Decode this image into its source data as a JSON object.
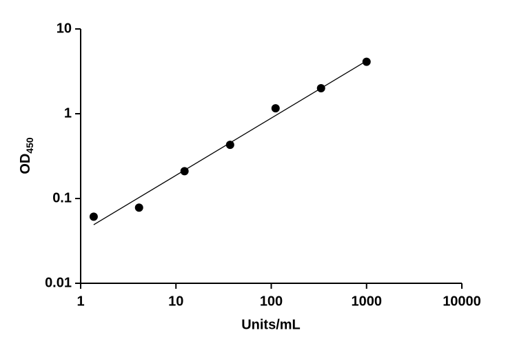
{
  "chart_data": {
    "type": "scatter",
    "x_label": "Units/mL",
    "y_label": "OD",
    "y_label_subscript": "450",
    "xscale": "log",
    "yscale": "log",
    "xlim": [
      1,
      10000
    ],
    "xticks": [
      1,
      10,
      100,
      1000,
      10000
    ],
    "ylim": [
      0.01,
      10
    ],
    "yticks": [
      0.01,
      0.1,
      1,
      10
    ],
    "series": [
      {
        "x": [
          1.37,
          4.1,
          12.3,
          37,
          111,
          333,
          1000
        ],
        "values": [
          0.061,
          0.078,
          0.21,
          0.43,
          1.16,
          2.0,
          4.1
        ],
        "color": "#000000",
        "mode": "markers"
      },
      {
        "x": [
          1.37,
          1000
        ],
        "values": [
          0.049,
          4.2
        ],
        "color": "#000000",
        "mode": "line"
      }
    ]
  }
}
